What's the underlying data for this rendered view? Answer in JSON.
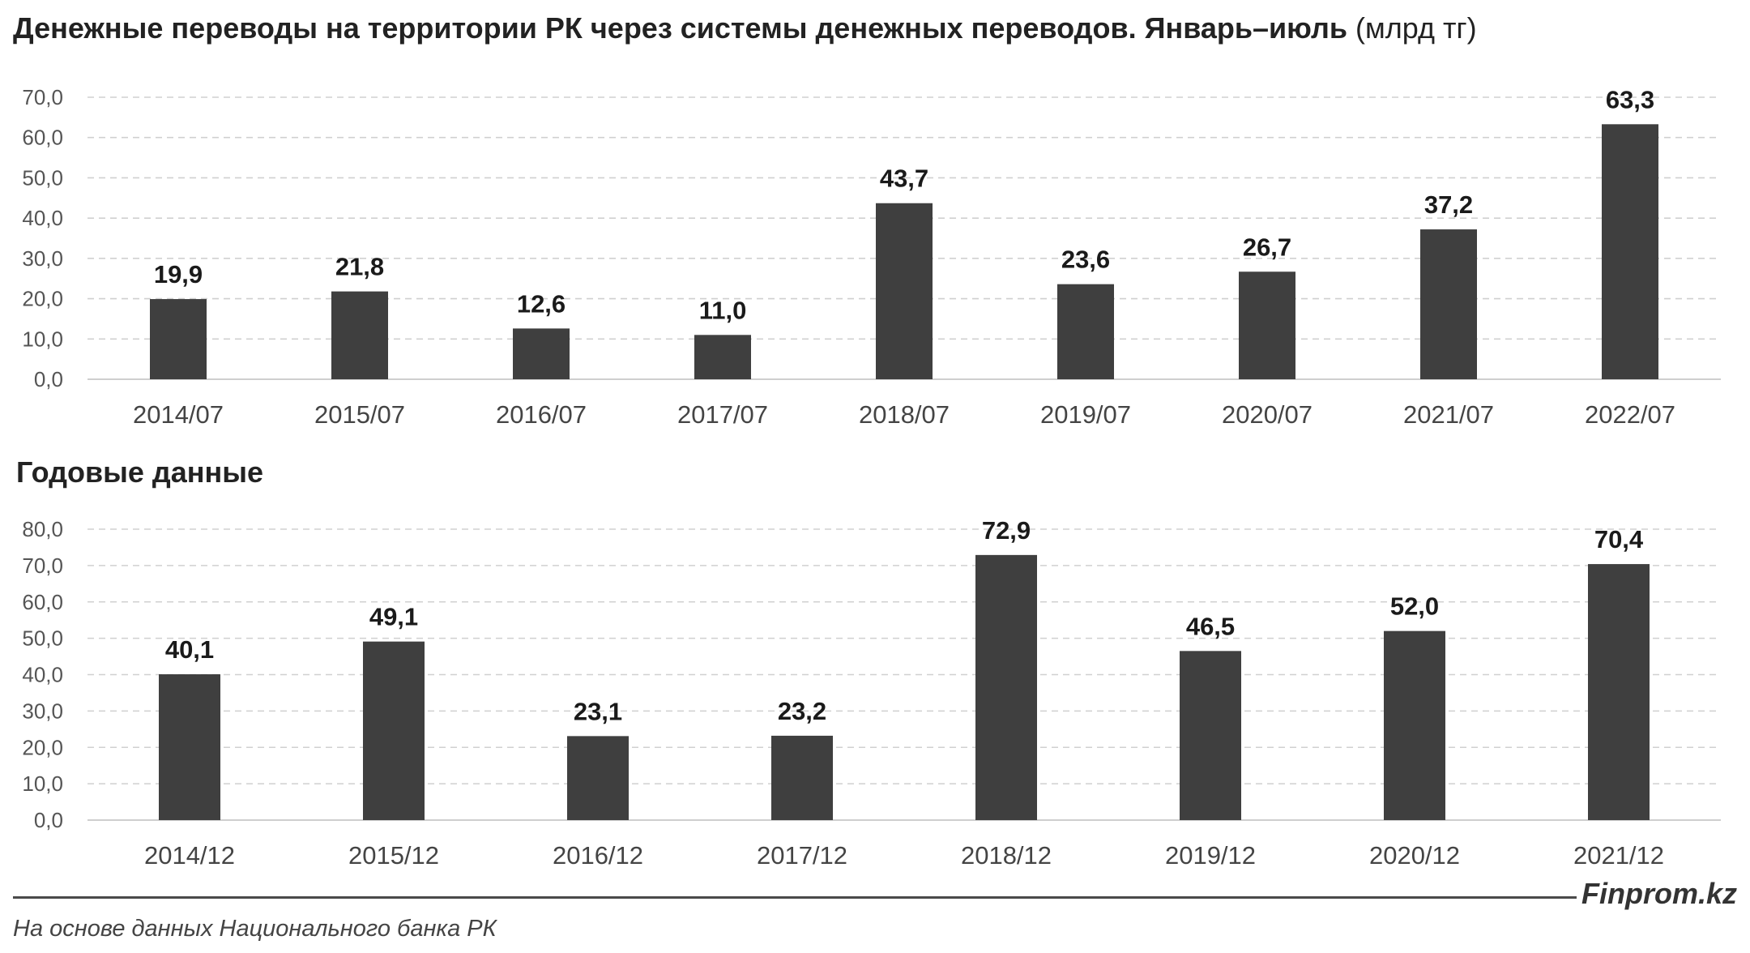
{
  "header": {
    "title": "Денежные переводы на территории РК через системы денежных переводов. Январь–июль",
    "unit": "(млрд тг)"
  },
  "subheader": {
    "title": "Годовые данные"
  },
  "chart_data": [
    {
      "type": "bar",
      "title": "Денежные переводы на территории РК через системы денежных переводов. Январь–июль (млрд тг)",
      "categories": [
        "2014/07",
        "2015/07",
        "2016/07",
        "2017/07",
        "2018/07",
        "2019/07",
        "2020/07",
        "2021/07",
        "2022/07"
      ],
      "values": [
        19.9,
        21.8,
        12.6,
        11.0,
        43.7,
        23.6,
        26.7,
        37.2,
        63.3
      ],
      "labels": [
        "19,9",
        "21,8",
        "12,6",
        "11,0",
        "43,7",
        "23,6",
        "26,7",
        "37,2",
        "63,3"
      ],
      "ylim": [
        0,
        70
      ],
      "yticks": [
        "0,0",
        "10,0",
        "20,0",
        "30,0",
        "40,0",
        "50,0",
        "60,0",
        "70,0"
      ],
      "grid": true,
      "color": "#3f3f3f"
    },
    {
      "type": "bar",
      "title": "Годовые данные",
      "categories": [
        "2014/12",
        "2015/12",
        "2016/12",
        "2017/12",
        "2018/12",
        "2019/12",
        "2020/12",
        "2021/12"
      ],
      "values": [
        40.1,
        49.1,
        23.1,
        23.2,
        72.9,
        46.5,
        52.0,
        70.4
      ],
      "labels": [
        "40,1",
        "49,1",
        "23,1",
        "23,2",
        "72,9",
        "46,5",
        "52,0",
        "70,4"
      ],
      "ylim": [
        0,
        80
      ],
      "yticks": [
        "0,0",
        "10,0",
        "20,0",
        "30,0",
        "40,0",
        "50,0",
        "60,0",
        "70,0",
        "80,0"
      ],
      "grid": true,
      "color": "#3f3f3f"
    }
  ],
  "footer": {
    "brand": "Finprom.kz",
    "source": "На основе данных Национального банка РК"
  }
}
